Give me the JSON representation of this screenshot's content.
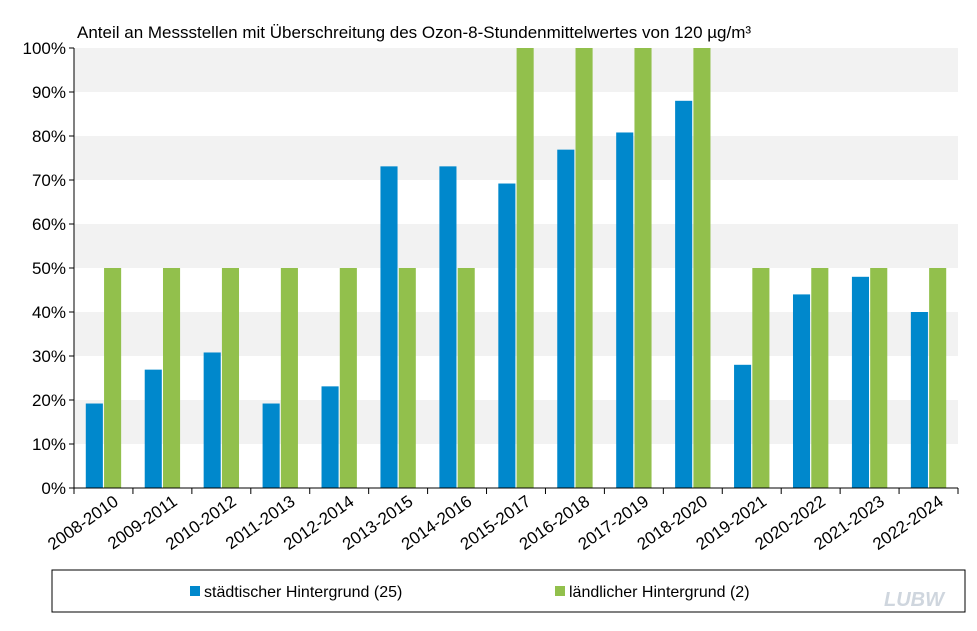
{
  "chart_data": {
    "type": "bar",
    "title": "Anteil an Messstellen mit Überschreitung  des Ozon-8-Stundenmittelwertes  von 120 µg/m³",
    "categories": [
      "2008-2010",
      "2009-2011",
      "2010-2012",
      "2011-2013",
      "2012-2014",
      "2013-2015",
      "2014-2016",
      "2015-2017",
      "2016-2018",
      "2017-2019",
      "2018-2020",
      "2019-2021",
      "2020-2022",
      "2021-2023",
      "2022-2024"
    ],
    "series": [
      {
        "name": "städtischer Hintergrund (25)",
        "color": "#0088cc",
        "values": [
          19.2,
          26.9,
          30.8,
          19.2,
          23.1,
          73.1,
          73.1,
          69.2,
          76.9,
          80.8,
          88.0,
          28.0,
          44.0,
          48.0,
          40.0
        ]
      },
      {
        "name": "ländlicher Hintergrund (2)",
        "color": "#92c04c",
        "values": [
          50,
          50,
          50,
          50,
          50,
          50,
          50,
          100,
          100,
          100,
          100,
          50,
          50,
          50,
          50
        ]
      }
    ],
    "ylim": [
      0,
      100
    ],
    "y_ticks": [
      "0%",
      "10%",
      "20%",
      "30%",
      "40%",
      "50%",
      "60%",
      "70%",
      "80%",
      "90%",
      "100%"
    ],
    "xlabel": "",
    "ylabel": "",
    "grid": "alternating horizontal bands",
    "band_color": "#f2f2f2",
    "legend_position": "bottom"
  },
  "logo": {
    "text": "LUBW",
    "name": "lubw-logo"
  }
}
